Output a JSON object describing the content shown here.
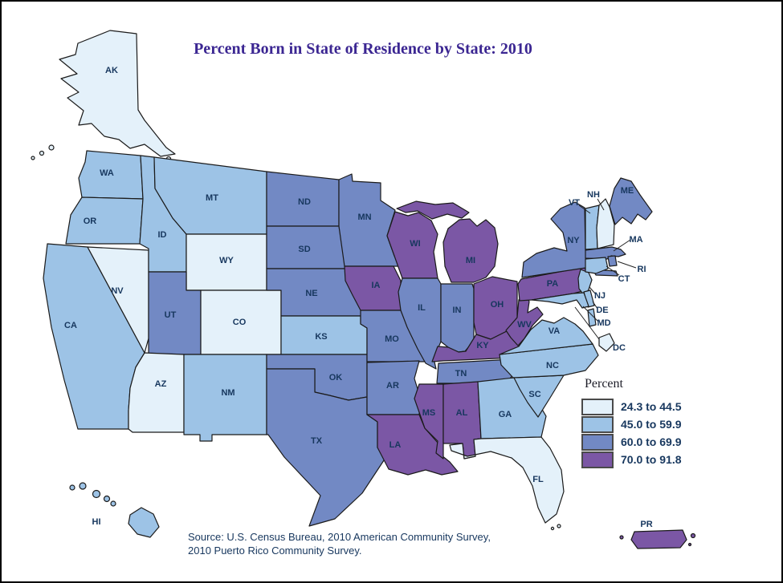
{
  "title": "Percent Born in State of Residence by State: 2010",
  "legend": {
    "heading": "Percent",
    "classes": [
      {
        "label": "24.3 to 44.5",
        "color": "#E4F1FA"
      },
      {
        "label": "45.0 to 59.9",
        "color": "#9DC3E6"
      },
      {
        "label": "60.0 to 69.9",
        "color": "#7289C4"
      },
      {
        "label": "70.0 to 91.8",
        "color": "#7B57A5"
      }
    ]
  },
  "source": {
    "line1": "Source: U.S. Census Bureau, 2010 American Community Survey,",
    "line2": "2010 Puerto Rico Community Survey."
  },
  "map": {
    "states": [
      {
        "id": "AK",
        "label": "AK",
        "class": 0
      },
      {
        "id": "WA",
        "label": "WA",
        "class": 1
      },
      {
        "id": "OR",
        "label": "OR",
        "class": 1
      },
      {
        "id": "CA",
        "label": "CA",
        "class": 1
      },
      {
        "id": "NV",
        "label": "NV",
        "class": 0
      },
      {
        "id": "ID",
        "label": "ID",
        "class": 1
      },
      {
        "id": "MT",
        "label": "MT",
        "class": 1
      },
      {
        "id": "WY",
        "label": "WY",
        "class": 0
      },
      {
        "id": "UT",
        "label": "UT",
        "class": 2
      },
      {
        "id": "CO",
        "label": "CO",
        "class": 0
      },
      {
        "id": "AZ",
        "label": "AZ",
        "class": 0
      },
      {
        "id": "NM",
        "label": "NM",
        "class": 1
      },
      {
        "id": "ND",
        "label": "ND",
        "class": 2
      },
      {
        "id": "SD",
        "label": "SD",
        "class": 2
      },
      {
        "id": "NE",
        "label": "NE",
        "class": 2
      },
      {
        "id": "KS",
        "label": "KS",
        "class": 1
      },
      {
        "id": "OK",
        "label": "OK",
        "class": 2
      },
      {
        "id": "TX",
        "label": "TX",
        "class": 2
      },
      {
        "id": "MN",
        "label": "MN",
        "class": 2
      },
      {
        "id": "IA",
        "label": "IA",
        "class": 3
      },
      {
        "id": "MO",
        "label": "MO",
        "class": 2
      },
      {
        "id": "AR",
        "label": "AR",
        "class": 2
      },
      {
        "id": "LA",
        "label": "LA",
        "class": 3
      },
      {
        "id": "WI",
        "label": "WI",
        "class": 3
      },
      {
        "id": "IL",
        "label": "IL",
        "class": 2
      },
      {
        "id": "IN",
        "label": "IN",
        "class": 2
      },
      {
        "id": "MI",
        "label": "MI",
        "class": 3
      },
      {
        "id": "OH",
        "label": "OH",
        "class": 3
      },
      {
        "id": "KY",
        "label": "KY",
        "class": 3
      },
      {
        "id": "TN",
        "label": "TN",
        "class": 2
      },
      {
        "id": "MS",
        "label": "MS",
        "class": 3
      },
      {
        "id": "AL",
        "label": "AL",
        "class": 3
      },
      {
        "id": "GA",
        "label": "GA",
        "class": 1
      },
      {
        "id": "FL",
        "label": "FL",
        "class": 0
      },
      {
        "id": "SC",
        "label": "SC",
        "class": 1
      },
      {
        "id": "NC",
        "label": "NC",
        "class": 1
      },
      {
        "id": "VA",
        "label": "VA",
        "class": 1
      },
      {
        "id": "WV",
        "label": "WV",
        "class": 3
      },
      {
        "id": "PA",
        "label": "PA",
        "class": 3
      },
      {
        "id": "NY",
        "label": "NY",
        "class": 2
      },
      {
        "id": "NJ",
        "label": "NJ",
        "class": 1
      },
      {
        "id": "VT",
        "label": "VT",
        "class": 1
      },
      {
        "id": "NH",
        "label": "NH",
        "class": 0
      },
      {
        "id": "ME",
        "label": "ME",
        "class": 2
      },
      {
        "id": "MA",
        "label": "MA",
        "class": 2
      },
      {
        "id": "RI",
        "label": "RI",
        "class": 2
      },
      {
        "id": "CT",
        "label": "CT",
        "class": 1
      },
      {
        "id": "DE",
        "label": "DE",
        "class": 1
      },
      {
        "id": "MD",
        "label": "MD",
        "class": 1
      },
      {
        "id": "DC",
        "label": "DC",
        "class": 0
      },
      {
        "id": "HI",
        "label": "HI",
        "class": 1
      },
      {
        "id": "PR",
        "label": "PR",
        "class": 3
      }
    ]
  }
}
